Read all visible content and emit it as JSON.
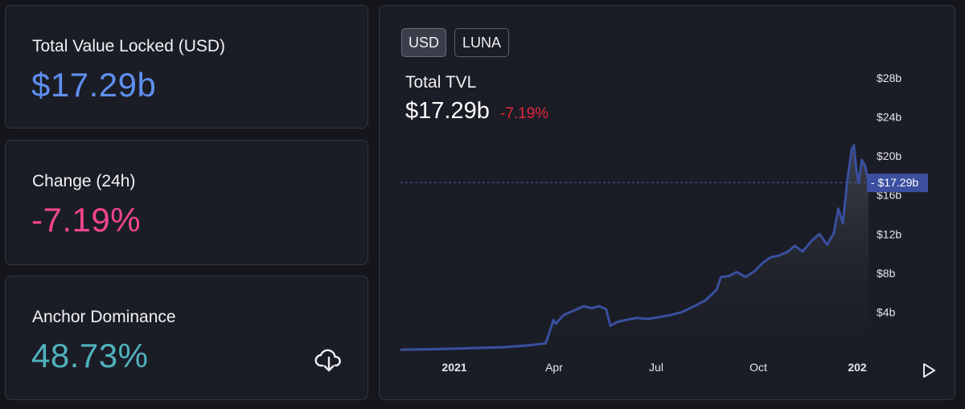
{
  "stats": {
    "tvl": {
      "label": "Total Value Locked (USD)",
      "value": "$17.29b",
      "color": "#5e8ff0"
    },
    "change": {
      "label": "Change (24h)",
      "value": "-7.19%",
      "color": "#f0458f"
    },
    "dominance": {
      "label": "Anchor Dominance",
      "value": "48.73%",
      "color": "#4fb2bd"
    }
  },
  "chart_panel": {
    "toggles": [
      {
        "label": "USD",
        "active": true
      },
      {
        "label": "LUNA",
        "active": false
      }
    ],
    "title": "Total TVL",
    "current_value": "$17.29b",
    "change": "-7.19%",
    "change_color": "#e3253a",
    "line_color": "#3a4f9e",
    "price_tag": "$17.29b"
  },
  "chart_data": {
    "type": "area",
    "title": "Total TVL",
    "xlabel": "",
    "ylabel": "",
    "x_ticks": [
      "2021",
      "Apr",
      "Jul",
      "Oct",
      "202"
    ],
    "y_ticks": [
      "$4b",
      "$8b",
      "$12b",
      "$16b",
      "$20b",
      "$24b",
      "$28b"
    ],
    "ylim": [
      0,
      28
    ],
    "x_range": [
      "2020-11-15",
      "2022-01-08"
    ],
    "current_value_line": 17.29,
    "grid": false,
    "series": [
      {
        "x": [
          "2020-11-15",
          "2020-12-15",
          "2021-01-15",
          "2021-02-15",
          "2021-03-10",
          "2021-03-25",
          "2021-04-01",
          "2021-04-03",
          "2021-04-10",
          "2021-04-20",
          "2021-04-28",
          "2021-05-05",
          "2021-05-12",
          "2021-05-18",
          "2021-05-22",
          "2021-05-28",
          "2021-06-05",
          "2021-06-15",
          "2021-06-25",
          "2021-07-05",
          "2021-07-15",
          "2021-07-25",
          "2021-08-05",
          "2021-08-15",
          "2021-08-25",
          "2021-08-29",
          "2021-09-05",
          "2021-09-12",
          "2021-09-20",
          "2021-09-28",
          "2021-10-05",
          "2021-10-12",
          "2021-10-20",
          "2021-10-28",
          "2021-11-03",
          "2021-11-10",
          "2021-11-18",
          "2021-11-25",
          "2021-12-02",
          "2021-12-08",
          "2021-12-12",
          "2021-12-16",
          "2021-12-20",
          "2021-12-24",
          "2021-12-26",
          "2021-12-28",
          "2021-12-30",
          "2022-01-02",
          "2022-01-05",
          "2022-01-08"
        ],
        "values": [
          0.15,
          0.2,
          0.3,
          0.4,
          0.6,
          0.8,
          3.2,
          2.8,
          3.7,
          4.2,
          4.6,
          4.4,
          4.6,
          4.3,
          2.6,
          3.0,
          3.2,
          3.4,
          3.3,
          3.5,
          3.7,
          4.0,
          4.6,
          5.2,
          6.3,
          7.6,
          7.7,
          8.1,
          7.6,
          8.2,
          9.0,
          9.6,
          9.8,
          10.2,
          10.8,
          10.2,
          11.3,
          12.0,
          10.9,
          12.1,
          14.6,
          13.1,
          17.4,
          20.7,
          21.1,
          18.7,
          17.2,
          19.6,
          19.0,
          17.29
        ]
      }
    ]
  }
}
